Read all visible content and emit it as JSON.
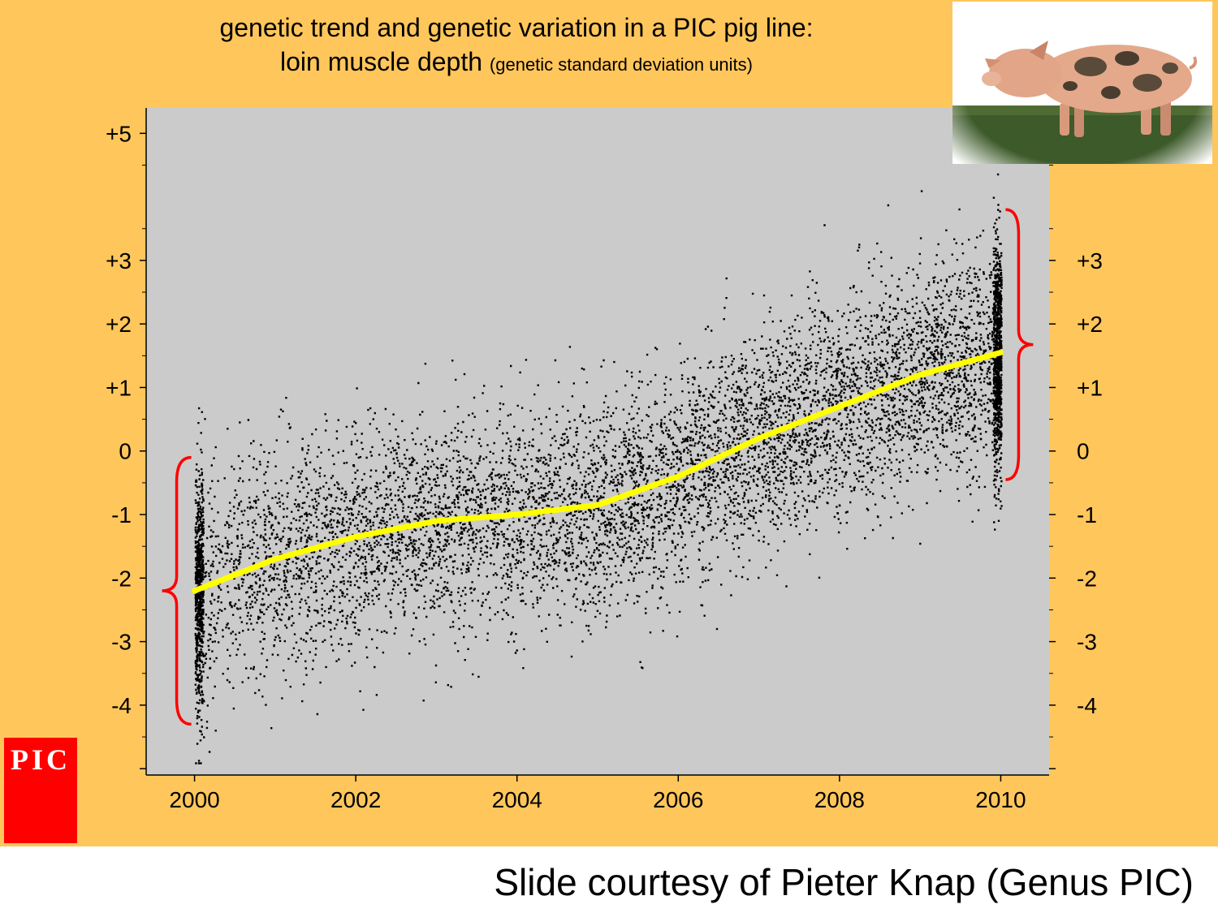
{
  "title": {
    "line1": "genetic trend and genetic variation in a PIC pig line:",
    "line2_main": "loin muscle depth",
    "line2_sub": "(genetic standard deviation units)"
  },
  "logo": {
    "text": "PIC",
    "color": "#ff0000"
  },
  "credit": "Slide courtesy of Pieter Knap (Genus PIC)",
  "photo": {
    "subject": "pig"
  },
  "colors": {
    "background": "#ffc65c",
    "plot_area": "#cbcbcb",
    "points": "#000000",
    "trend": "#ffff00",
    "brace": "#ff0000"
  },
  "chart_data": {
    "type": "scatter",
    "title": "genetic trend and genetic variation in a PIC pig line: loin muscle depth (genetic standard deviation units)",
    "xlim": [
      1999.4,
      2010.6
    ],
    "ylim": [
      -5.1,
      5.4
    ],
    "x_ticks": [
      2000,
      2002,
      2004,
      2006,
      2008,
      2010
    ],
    "x_tick_labels": [
      "2000",
      "2002",
      "2004",
      "2006",
      "2008",
      "2010"
    ],
    "y_left_ticks": [
      5,
      3,
      2,
      1,
      0,
      -1,
      -2,
      -3,
      -4
    ],
    "y_left_tick_labels": [
      "+5",
      "+3",
      "+2",
      "+1",
      "0",
      "-1",
      "-2",
      "-3",
      "-4"
    ],
    "y_right_ticks": [
      3,
      2,
      1,
      0,
      -1,
      -2,
      -3,
      -4
    ],
    "y_right_tick_labels": [
      "+3",
      "+2",
      "+1",
      "0",
      "-1",
      "-2",
      "-3",
      "-4"
    ],
    "trend": {
      "x": [
        2000,
        2001,
        2002,
        2003,
        2004,
        2005,
        2006,
        2007,
        2008,
        2009,
        2010
      ],
      "y": [
        -2.2,
        -1.7,
        -1.35,
        -1.1,
        -1.0,
        -0.85,
        -0.4,
        0.2,
        0.7,
        1.2,
        1.55
      ]
    },
    "scatter_summary": {
      "x_range": [
        2000,
        2010
      ],
      "sd": [
        0.9,
        0.9,
        0.85,
        0.85,
        0.85,
        0.85,
        0.85,
        0.85,
        0.85,
        0.85,
        0.9
      ]
    },
    "braces": [
      {
        "side": "left",
        "x": 2000,
        "y_range": [
          -4.3,
          -0.1
        ]
      },
      {
        "side": "right",
        "x": 2010,
        "y_range": [
          -0.45,
          3.8
        ]
      }
    ],
    "grid": false,
    "legend": "none"
  }
}
